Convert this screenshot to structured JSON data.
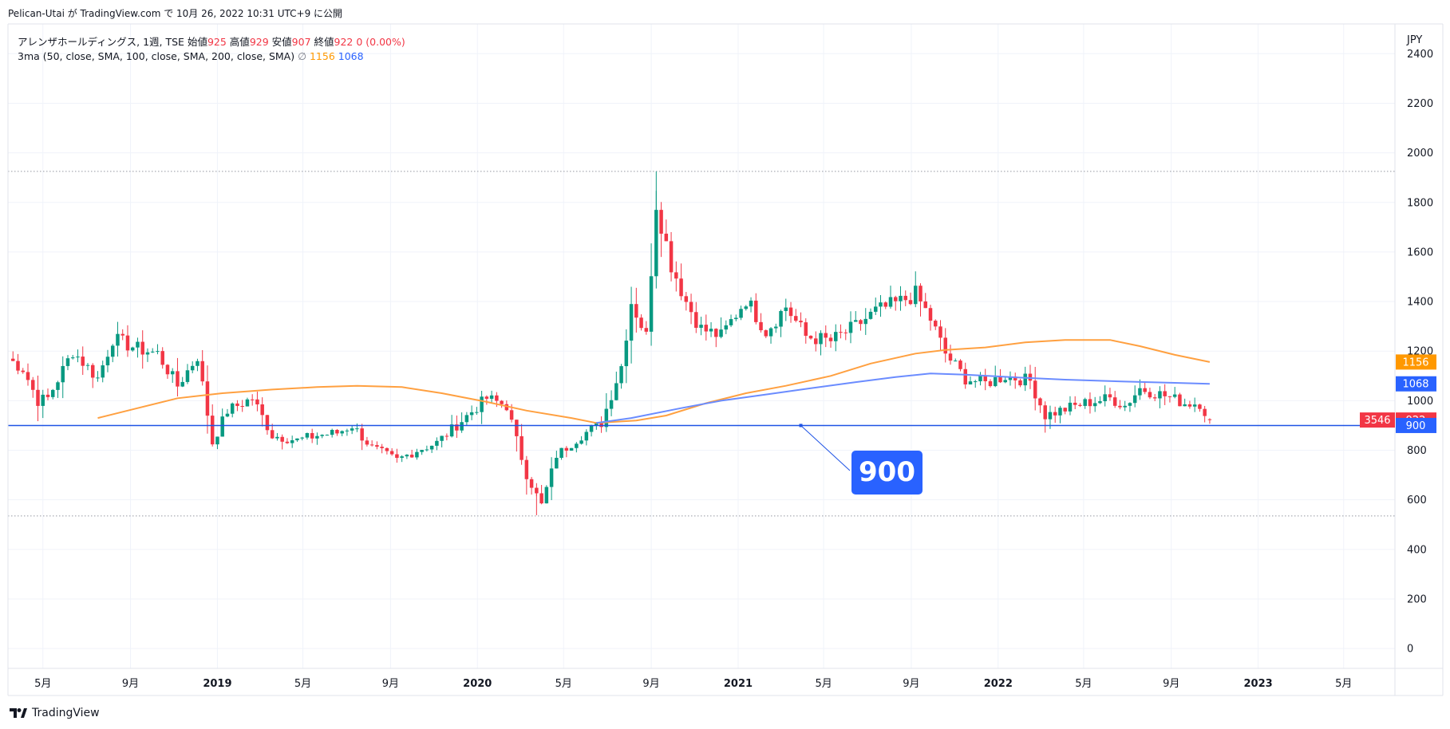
{
  "header": {
    "publisher": "Pelican-Utai が TradingView.com で 10月 26, 2022 10:31 UTC+9 に公開"
  },
  "legend": {
    "symbol": "アレンザホールディングス, 1週, TSE",
    "open_label": "始値",
    "open": "925",
    "high_label": "高値",
    "high": "929",
    "low_label": "安値",
    "low": "907",
    "close_label": "終値",
    "close": "922",
    "change": "0 (0.00%)",
    "indicator": "3ma (50, close, SMA, 100, close, SMA, 200, close, SMA)",
    "na_symbol": "∅",
    "ma1_value": "1156",
    "ma2_value": "1068"
  },
  "footer": {
    "brand": "TradingView"
  },
  "colors": {
    "up": "#089981",
    "down": "#f23645",
    "ma_orange": "#ffa040",
    "ma_blue": "#6b8cff",
    "hline": "#1e53e5",
    "grid": "#f0f3fa"
  },
  "chart_data": {
    "type": "candlestick",
    "currency": "JPY",
    "ylim": [
      -80,
      2520
    ],
    "y_ticks": [
      0,
      200,
      400,
      600,
      800,
      1000,
      1200,
      1400,
      1600,
      1800,
      2000,
      2200,
      2400
    ],
    "x_ticks": [
      {
        "label": "5月",
        "date": "2018-05-01"
      },
      {
        "label": "9月",
        "date": "2018-09-01"
      },
      {
        "label": "2019",
        "date": "2019-01-01"
      },
      {
        "label": "5月",
        "date": "2019-05-01"
      },
      {
        "label": "9月",
        "date": "2019-09-01"
      },
      {
        "label": "2020",
        "date": "2020-01-01"
      },
      {
        "label": "5月",
        "date": "2020-05-01"
      },
      {
        "label": "9月",
        "date": "2020-09-01"
      },
      {
        "label": "2021",
        "date": "2021-01-01"
      },
      {
        "label": "5月",
        "date": "2021-05-01"
      },
      {
        "label": "9月",
        "date": "2021-09-01"
      },
      {
        "label": "2022",
        "date": "2022-01-01"
      },
      {
        "label": "5月",
        "date": "2022-05-01"
      },
      {
        "label": "9月",
        "date": "2022-09-01"
      },
      {
        "label": "2023",
        "date": "2023-01-01"
      },
      {
        "label": "5月",
        "date": "2023-05-01"
      }
    ],
    "x_range": [
      "2018-03-13",
      "2023-07-12"
    ],
    "anchors": [
      [
        "2018-03-13",
        1170
      ],
      [
        "2018-04-03",
        1130
      ],
      [
        "2018-04-24",
        1000
      ],
      [
        "2018-05-08",
        1010
      ],
      [
        "2018-06-12",
        1200
      ],
      [
        "2018-07-17",
        1090
      ],
      [
        "2018-08-07",
        1250
      ],
      [
        "2018-09-11",
        1210
      ],
      [
        "2018-10-09",
        1190
      ],
      [
        "2018-11-06",
        1060
      ],
      [
        "2018-12-04",
        1180
      ],
      [
        "2018-12-25",
        830
      ],
      [
        "2019-01-15",
        960
      ],
      [
        "2019-02-19",
        1010
      ],
      [
        "2019-03-19",
        860
      ],
      [
        "2019-04-23",
        840
      ],
      [
        "2019-05-21",
        860
      ],
      [
        "2019-06-18",
        870
      ],
      [
        "2019-07-09",
        900
      ],
      [
        "2019-08-06",
        810
      ],
      [
        "2019-09-10",
        760
      ],
      [
        "2019-10-08",
        800
      ],
      [
        "2019-11-05",
        830
      ],
      [
        "2019-12-10",
        920
      ],
      [
        "2020-01-14",
        1010
      ],
      [
        "2020-02-11",
        980
      ],
      [
        "2020-03-10",
        700
      ],
      [
        "2020-03-31",
        580
      ],
      [
        "2020-04-21",
        780
      ],
      [
        "2020-05-26",
        860
      ],
      [
        "2020-06-23",
        910
      ],
      [
        "2020-07-21",
        1140
      ],
      [
        "2020-08-04",
        1400
      ],
      [
        "2020-08-25",
        1260
      ],
      [
        "2020-09-08",
        1800
      ],
      [
        "2020-09-29",
        1550
      ],
      [
        "2020-10-20",
        1400
      ],
      [
        "2020-11-10",
        1290
      ],
      [
        "2020-12-08",
        1260
      ],
      [
        "2021-01-12",
        1410
      ],
      [
        "2021-02-09",
        1280
      ],
      [
        "2021-03-09",
        1380
      ],
      [
        "2021-04-06",
        1260
      ],
      [
        "2021-05-11",
        1240
      ],
      [
        "2021-06-15",
        1300
      ],
      [
        "2021-07-13",
        1360
      ],
      [
        "2021-08-17",
        1400
      ],
      [
        "2021-09-07",
        1430
      ],
      [
        "2021-09-28",
        1330
      ],
      [
        "2021-10-19",
        1190
      ],
      [
        "2021-11-16",
        1090
      ],
      [
        "2021-12-14",
        1070
      ],
      [
        "2022-01-11",
        1100
      ],
      [
        "2022-02-15",
        1080
      ],
      [
        "2022-03-08",
        940
      ],
      [
        "2022-03-29",
        960
      ],
      [
        "2022-05-03",
        990
      ],
      [
        "2022-06-07",
        1010
      ],
      [
        "2022-06-28",
        980
      ],
      [
        "2022-07-19",
        1050
      ],
      [
        "2022-08-23",
        1020
      ],
      [
        "2022-09-20",
        990
      ],
      [
        "2022-10-11",
        990
      ],
      [
        "2022-10-25",
        922
      ]
    ],
    "series": [
      {
        "name": "SMA50",
        "color": "#ff9800",
        "value": 1156,
        "points": [
          [
            "2018-07-17",
            930
          ],
          [
            "2018-09-11",
            970
          ],
          [
            "2018-11-06",
            1010
          ],
          [
            "2019-01-08",
            1030
          ],
          [
            "2019-03-19",
            1045
          ],
          [
            "2019-05-21",
            1055
          ],
          [
            "2019-07-16",
            1060
          ],
          [
            "2019-09-17",
            1055
          ],
          [
            "2019-11-12",
            1030
          ],
          [
            "2020-01-14",
            995
          ],
          [
            "2020-03-10",
            960
          ],
          [
            "2020-05-12",
            930
          ],
          [
            "2020-06-16",
            910
          ],
          [
            "2020-08-11",
            920
          ],
          [
            "2020-09-22",
            940
          ],
          [
            "2020-11-17",
            990
          ],
          [
            "2021-01-12",
            1030
          ],
          [
            "2021-03-09",
            1060
          ],
          [
            "2021-05-11",
            1100
          ],
          [
            "2021-07-06",
            1150
          ],
          [
            "2021-09-07",
            1190
          ],
          [
            "2021-10-19",
            1205
          ],
          [
            "2021-12-14",
            1215
          ],
          [
            "2022-02-08",
            1235
          ],
          [
            "2022-04-05",
            1245
          ],
          [
            "2022-06-07",
            1245
          ],
          [
            "2022-07-19",
            1220
          ],
          [
            "2022-09-06",
            1185
          ],
          [
            "2022-10-25",
            1156
          ]
        ]
      },
      {
        "name": "SMA100",
        "color": "#2962ff",
        "value": 1068,
        "points": [
          [
            "2020-06-16",
            910
          ],
          [
            "2020-08-04",
            930
          ],
          [
            "2020-10-13",
            970
          ],
          [
            "2020-12-08",
            1000
          ],
          [
            "2021-02-09",
            1025
          ],
          [
            "2021-04-13",
            1050
          ],
          [
            "2021-06-15",
            1075
          ],
          [
            "2021-08-10",
            1095
          ],
          [
            "2021-09-28",
            1110
          ],
          [
            "2021-11-16",
            1105
          ],
          [
            "2022-01-18",
            1095
          ],
          [
            "2022-04-05",
            1085
          ],
          [
            "2022-06-28",
            1077
          ],
          [
            "2022-09-06",
            1072
          ],
          [
            "2022-10-25",
            1068
          ]
        ]
      }
    ],
    "horizontal_line": {
      "value": 900,
      "label": "900"
    },
    "dotted_lines": [
      1925,
      535
    ],
    "price_labels": [
      {
        "text": "1156",
        "color": "#ff9800"
      },
      {
        "text": "1068",
        "color": "#2962ff"
      },
      {
        "text": "922",
        "color": "#f23645",
        "extra": "3546"
      },
      {
        "text": "900",
        "color": "#2962ff"
      }
    ]
  }
}
